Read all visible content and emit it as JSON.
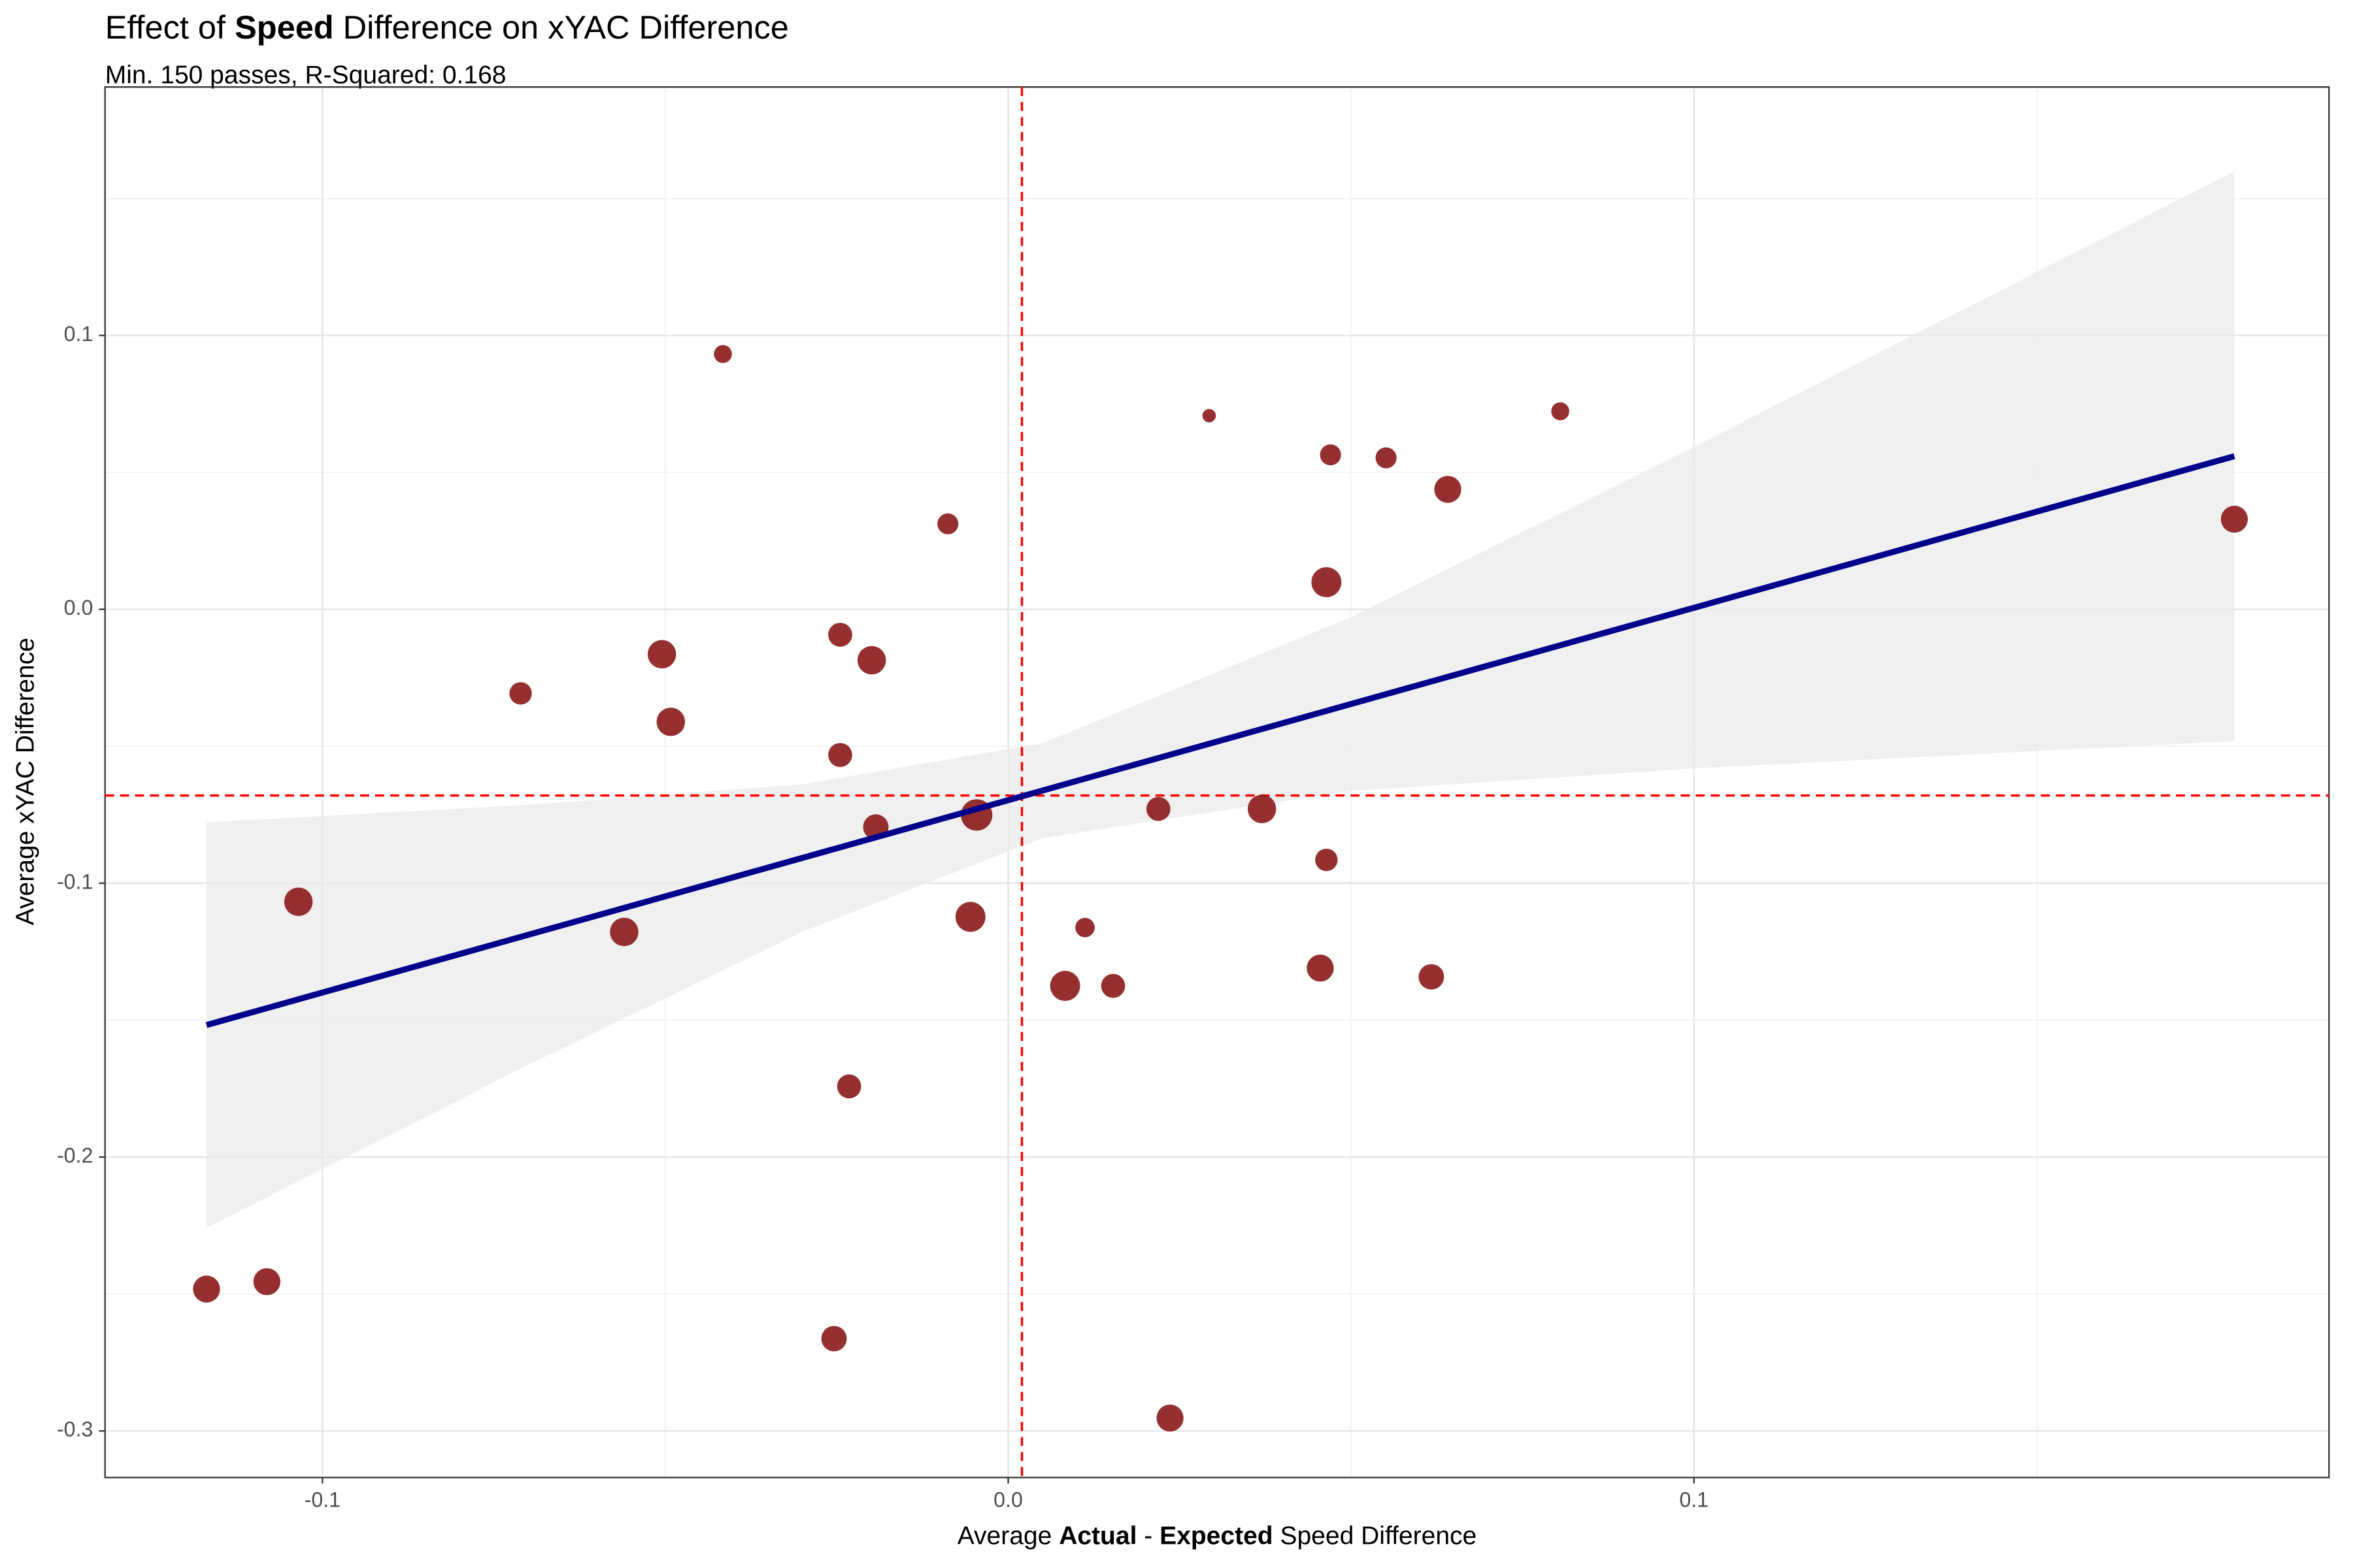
{
  "chart_data": {
    "type": "scatter",
    "title": [
      {
        "text": "Effect of ",
        "bold": false
      },
      {
        "text": "Speed",
        "bold": true
      },
      {
        "text": " Difference on xYAC Difference",
        "bold": false
      }
    ],
    "subtitle": "Min. 150 passes, R-Squared: 0.168",
    "x_label": [
      {
        "text": "Average ",
        "bold": false
      },
      {
        "text": "Actual",
        "bold": true
      },
      {
        "text": " - ",
        "bold": false
      },
      {
        "text": "Expected",
        "bold": true
      },
      {
        "text": " Speed Difference",
        "bold": false
      }
    ],
    "y_label": "Average xYAC Difference",
    "xlim": [
      -0.1317,
      0.1926
    ],
    "ylim": [
      -0.317,
      0.1907
    ],
    "xticks": [
      -0.1,
      {
        "value": 0,
        "label": "0.0"
      },
      0.1
    ],
    "yticks": [
      -0.3,
      -0.2,
      -0.1,
      {
        "value": 0,
        "label": "0.0"
      },
      0.1
    ],
    "xminor": [
      -0.05,
      0.05,
      0.15
    ],
    "yminor": [
      -0.25,
      -0.15,
      -0.05,
      0.05,
      0.15
    ],
    "grid": true,
    "color": "#8b1a1a",
    "x": [
      -0.0416,
      0.0293,
      0.0805,
      0.047,
      0.0551,
      0.0641,
      -0.0088,
      0.1788,
      0.0464,
      -0.0245,
      -0.0505,
      -0.0199,
      -0.0711,
      -0.0492,
      -0.0245,
      -0.0046,
      0.0219,
      0.037,
      -0.0193,
      0.0464,
      -0.1035,
      -0.0055,
      -0.056,
      0.0112,
      0.0455,
      0.0617,
      0.0083,
      0.0153,
      -0.0232,
      -0.1081,
      -0.1169,
      -0.0254,
      0.0236
    ],
    "values": [
      0.0932,
      0.0707,
      0.0723,
      0.0564,
      0.0553,
      0.0438,
      0.0312,
      0.0329,
      0.0099,
      -0.0093,
      -0.0164,
      -0.0186,
      -0.0307,
      -0.0411,
      -0.0532,
      -0.0751,
      -0.0729,
      -0.0729,
      -0.0795,
      -0.0915,
      -0.1068,
      -0.1123,
      -0.1178,
      -0.1162,
      -0.131,
      -0.1342,
      -0.1375,
      -0.1375,
      -0.1742,
      -0.2455,
      -0.2482,
      -0.2663,
      -0.2953
    ],
    "sizes": [
      36,
      20,
      36,
      49,
      49,
      81,
      49,
      81,
      100,
      64,
      90,
      90,
      56,
      90,
      64,
      110,
      64,
      90,
      72,
      56,
      90,
      100,
      90,
      42,
      81,
      72,
      100,
      64,
      64,
      81,
      81,
      72,
      81
    ],
    "fit": {
      "color": "#00008b",
      "x": [
        -0.1169,
        0.1788
      ],
      "y": [
        -0.1518,
        0.0559
      ]
    },
    "band": {
      "color": "#ebebeb",
      "x": [
        -0.1169,
        -0.07,
        -0.03,
        0.005,
        0.05,
        0.1,
        0.1788
      ],
      "upper": [
        -0.0778,
        -0.0714,
        -0.0639,
        -0.0489,
        -0.0029,
        0.0593,
        0.1599
      ],
      "lower": [
        -0.2258,
        -0.1664,
        -0.1177,
        -0.0835,
        -0.0663,
        -0.0581,
        -0.0481
      ]
    },
    "ref_color": "#ff0000",
    "vline": 0.002,
    "hline": -0.068
  }
}
